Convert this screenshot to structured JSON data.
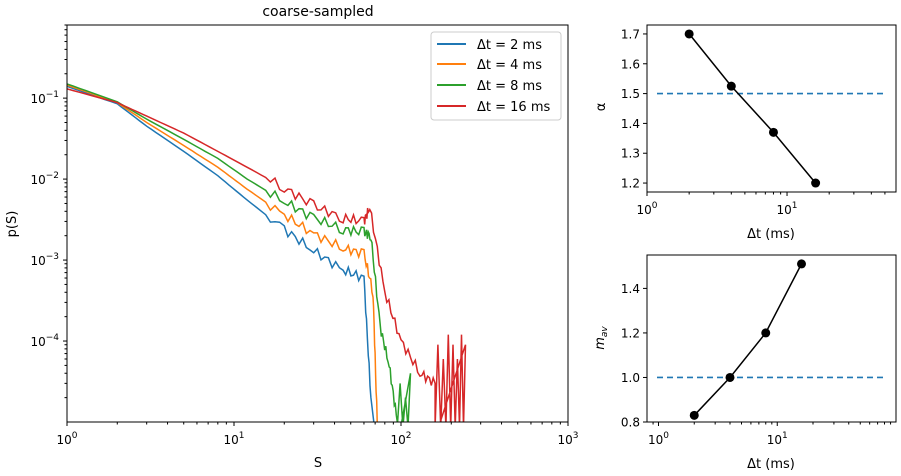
{
  "chart_data": [
    {
      "type": "line",
      "title": "coarse-sampled",
      "xlabel": "S",
      "ylabel": "p(S)",
      "xscale": "log",
      "yscale": "log",
      "xlim": [
        1,
        1000
      ],
      "ylim": [
        1e-05,
        0.8
      ],
      "x_ticks": [
        1,
        10,
        100,
        1000
      ],
      "x_tick_labels": [
        "10^0",
        "10^1",
        "10^2",
        "10^3"
      ],
      "y_ticks": [
        0.0001,
        0.001,
        0.01,
        0.1
      ],
      "y_tick_labels": [
        "10^-4",
        "10^-3",
        "10^-2",
        "10^-1"
      ],
      "legend_position": "top-right",
      "series": [
        {
          "name": "Δt = 2 ms",
          "color": "#1f77b4",
          "x": [
            1,
            2,
            3,
            5,
            8,
            12,
            20,
            30,
            45,
            60,
            66
          ],
          "y": [
            0.14,
            0.085,
            0.045,
            0.022,
            0.011,
            0.0055,
            0.0024,
            0.0013,
            0.00075,
            0.0006,
            2e-05
          ]
        },
        {
          "name": "Δt = 4 ms",
          "color": "#ff7f0e",
          "x": [
            1,
            2,
            3,
            5,
            8,
            12,
            20,
            30,
            45,
            60,
            68,
            72
          ],
          "y": [
            0.145,
            0.088,
            0.05,
            0.026,
            0.014,
            0.0075,
            0.0036,
            0.0021,
            0.0014,
            0.0012,
            0.0004,
            1e-05
          ]
        },
        {
          "name": "Δt = 8 ms",
          "color": "#2ca02c",
          "x": [
            1,
            2,
            3,
            5,
            8,
            12,
            20,
            30,
            45,
            60,
            66,
            75,
            85,
            95
          ],
          "y": [
            0.15,
            0.09,
            0.055,
            0.031,
            0.018,
            0.01,
            0.0053,
            0.0033,
            0.0024,
            0.0022,
            0.002,
            0.00015,
            5e-05,
            1e-05
          ]
        },
        {
          "name": "Δt = 16 ms",
          "color": "#d62728",
          "x": [
            1,
            2,
            3,
            5,
            8,
            12,
            20,
            30,
            45,
            60,
            65,
            80,
            100,
            130,
            160
          ],
          "y": [
            0.13,
            0.088,
            0.06,
            0.037,
            0.022,
            0.014,
            0.0078,
            0.0047,
            0.0033,
            0.003,
            0.0045,
            0.0004,
            0.0001,
            4e-05,
            3e-05
          ]
        }
      ]
    },
    {
      "type": "line",
      "xlabel": "Δt (ms)",
      "ylabel": "α",
      "xscale": "log",
      "xlim": [
        1,
        60
      ],
      "ylim": [
        1.17,
        1.73
      ],
      "x_ticks": [
        1,
        10
      ],
      "x_tick_labels": [
        "10^0",
        "10^1"
      ],
      "y_ticks": [
        1.2,
        1.3,
        1.4,
        1.5,
        1.6,
        1.7
      ],
      "y_tick_labels": [
        "1.2",
        "1.3",
        "1.4",
        "1.5",
        "1.6",
        "1.7"
      ],
      "reference_line": 1.5,
      "series": [
        {
          "name": "alpha",
          "x": [
            2,
            4,
            8,
            16
          ],
          "y": [
            1.7,
            1.525,
            1.37,
            1.2
          ]
        }
      ]
    },
    {
      "type": "line",
      "xlabel": "Δt (ms)",
      "ylabel": "m_av",
      "xscale": "log",
      "xlim": [
        0.8,
        100
      ],
      "ylim": [
        0.8,
        1.55
      ],
      "x_ticks": [
        1,
        10
      ],
      "x_tick_labels": [
        "10^0",
        "10^1"
      ],
      "y_ticks": [
        0.8,
        1.0,
        1.2,
        1.4
      ],
      "y_tick_labels": [
        "0.8",
        "1.0",
        "1.2",
        "1.4"
      ],
      "reference_line": 1.0,
      "series": [
        {
          "name": "m_av",
          "x": [
            2,
            4,
            8,
            16
          ],
          "y": [
            0.83,
            1.0,
            1.2,
            1.51
          ]
        }
      ]
    }
  ]
}
